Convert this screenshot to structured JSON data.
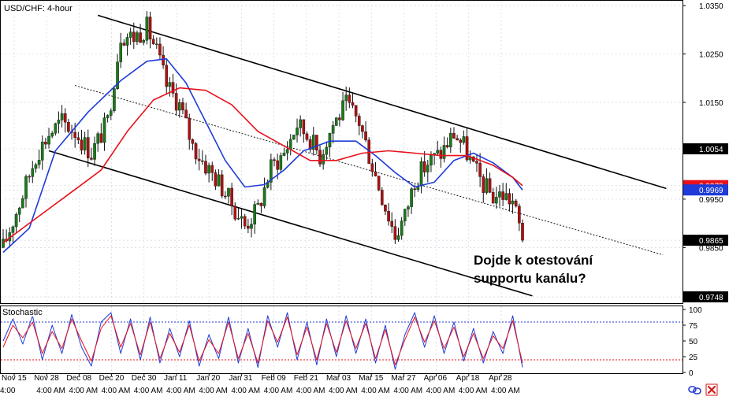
{
  "symbol_label": "USD/CHF: 4-hour",
  "annotation": "Dojde k otestování\nsupportu kanálu?",
  "chart_data": [
    {
      "type": "candlestick",
      "title": "USD/CHF: 4-hour",
      "ylim": [
        0.9735,
        1.036
      ],
      "y_ticks": [
        1.035,
        1.025,
        1.015,
        1.0054,
        0.9978,
        0.9969,
        0.995,
        0.9865,
        0.985,
        0.9748
      ],
      "y_tick_labels": [
        "1.0350",
        "1.0250",
        "1.0150",
        "1.0054",
        "0.9978",
        "0.9969",
        "0.9950",
        "0.9865",
        "0.9850",
        "0.9748"
      ],
      "highlighted_prices": [
        {
          "value": 1.0054,
          "label": "1.0054",
          "color": "#000000"
        },
        {
          "value": 0.9978,
          "label": "0.9978",
          "color": "#e8111b"
        },
        {
          "value": 0.9969,
          "label": "0.9969",
          "color": "#1f3bd8"
        },
        {
          "value": 0.9865,
          "label": "0.9865",
          "color": "#000000"
        },
        {
          "value": 0.9748,
          "label": "0.9748",
          "color": "#000000"
        }
      ],
      "x_date_labels": [
        "Nov 15",
        "Nov 28",
        "Dec 08",
        "Dec 20",
        "Dec 30",
        "Jan 11",
        "Jan 20",
        "Jan 31",
        "Feb 09",
        "Feb 21",
        "Mar 03",
        "Mar 15",
        "Mar 27",
        "Apr 06",
        "Apr 18",
        "Apr 28"
      ],
      "x_time_labels": [
        "4:00",
        "4:00 AM",
        "4:00 AM",
        "4:00 AM",
        "4:00 AM",
        "4:00 AM",
        "4:00 AM",
        "4:00 AM",
        "4:00 AM",
        "4:00 AM",
        "4:00 AM",
        "4:00 AM",
        "4:00 AM",
        "4:00 AM",
        "4:00 AM",
        "4:00 AM"
      ],
      "price_path": [
        {
          "x": 0,
          "y": 0.985
        },
        {
          "x": 6,
          "y": 0.996
        },
        {
          "x": 10,
          "y": 1.004
        },
        {
          "x": 14,
          "y": 1.0085
        },
        {
          "x": 18,
          "y": 1.011
        },
        {
          "x": 22,
          "y": 1.009
        },
        {
          "x": 27,
          "y": 1.0045
        },
        {
          "x": 32,
          "y": 1.011
        },
        {
          "x": 36,
          "y": 1.029
        },
        {
          "x": 40,
          "y": 1.0285
        },
        {
          "x": 44,
          "y": 1.0305
        },
        {
          "x": 47,
          "y": 1.0255
        },
        {
          "x": 50,
          "y": 1.0185
        },
        {
          "x": 54,
          "y": 1.0145
        },
        {
          "x": 58,
          "y": 1.006
        },
        {
          "x": 62,
          "y": 1.002
        },
        {
          "x": 66,
          "y": 0.9985
        },
        {
          "x": 70,
          "y": 0.994
        },
        {
          "x": 74,
          "y": 0.9895
        },
        {
          "x": 78,
          "y": 0.993
        },
        {
          "x": 82,
          "y": 1.0015
        },
        {
          "x": 86,
          "y": 1.0045
        },
        {
          "x": 90,
          "y": 1.0105
        },
        {
          "x": 94,
          "y": 1.0075
        },
        {
          "x": 97,
          "y": 1.004
        },
        {
          "x": 101,
          "y": 1.0105
        },
        {
          "x": 105,
          "y": 1.0145
        },
        {
          "x": 109,
          "y": 1.011
        },
        {
          "x": 113,
          "y": 1.002
        },
        {
          "x": 117,
          "y": 0.9935
        },
        {
          "x": 120,
          "y": 0.9875
        },
        {
          "x": 123,
          "y": 0.9915
        },
        {
          "x": 126,
          "y": 0.999
        },
        {
          "x": 130,
          "y": 1.0025
        },
        {
          "x": 134,
          "y": 1.0045
        },
        {
          "x": 138,
          "y": 1.0085
        },
        {
          "x": 141,
          "y": 1.006
        },
        {
          "x": 144,
          "y": 1.0015
        },
        {
          "x": 147,
          "y": 0.998
        },
        {
          "x": 150,
          "y": 0.9955
        },
        {
          "x": 153,
          "y": 0.996
        },
        {
          "x": 156,
          "y": 0.9945
        },
        {
          "x": 159,
          "y": 0.987
        }
      ],
      "series": [
        {
          "name": "",
          "color": "#1f3bd8",
          "values": [
            {
              "x": 0,
              "y": 0.984
            },
            {
              "x": 8,
              "y": 0.989
            },
            {
              "x": 16,
              "y": 1.005
            },
            {
              "x": 26,
              "y": 1.013
            },
            {
              "x": 36,
              "y": 1.0195
            },
            {
              "x": 44,
              "y": 1.0235
            },
            {
              "x": 50,
              "y": 1.024
            },
            {
              "x": 56,
              "y": 1.019
            },
            {
              "x": 62,
              "y": 1.011
            },
            {
              "x": 68,
              "y": 1.003
            },
            {
              "x": 74,
              "y": 0.9975
            },
            {
              "x": 80,
              "y": 0.998
            },
            {
              "x": 86,
              "y": 1.001
            },
            {
              "x": 92,
              "y": 1.005
            },
            {
              "x": 100,
              "y": 1.007
            },
            {
              "x": 108,
              "y": 1.007
            },
            {
              "x": 114,
              "y": 1.004
            },
            {
              "x": 120,
              "y": 1.0005
            },
            {
              "x": 126,
              "y": 0.9975
            },
            {
              "x": 132,
              "y": 0.9985
            },
            {
              "x": 138,
              "y": 1.003
            },
            {
              "x": 144,
              "y": 1.0045
            },
            {
              "x": 150,
              "y": 1.0025
            },
            {
              "x": 156,
              "y": 0.9995
            },
            {
              "x": 159,
              "y": 0.9969
            }
          ]
        },
        {
          "name": "",
          "color": "#e8111b",
          "values": [
            {
              "x": 0,
              "y": 0.986
            },
            {
              "x": 10,
              "y": 0.991
            },
            {
              "x": 20,
              "y": 0.996
            },
            {
              "x": 30,
              "y": 1.001
            },
            {
              "x": 38,
              "y": 1.009
            },
            {
              "x": 46,
              "y": 1.0155
            },
            {
              "x": 54,
              "y": 1.018
            },
            {
              "x": 62,
              "y": 1.0175
            },
            {
              "x": 70,
              "y": 1.0145
            },
            {
              "x": 78,
              "y": 1.009
            },
            {
              "x": 86,
              "y": 1.006
            },
            {
              "x": 94,
              "y": 1.003
            },
            {
              "x": 102,
              "y": 1.003
            },
            {
              "x": 110,
              "y": 1.0045
            },
            {
              "x": 118,
              "y": 1.005
            },
            {
              "x": 126,
              "y": 1.0045
            },
            {
              "x": 134,
              "y": 1.004
            },
            {
              "x": 142,
              "y": 1.004
            },
            {
              "x": 150,
              "y": 1.002
            },
            {
              "x": 156,
              "y": 0.9995
            },
            {
              "x": 159,
              "y": 0.9978
            }
          ]
        }
      ],
      "trendlines": [
        {
          "role": "channel_upper",
          "style": "solid",
          "from": {
            "x": 29,
            "y": 1.033
          },
          "to": {
            "x": 203,
            "y": 0.9972
          }
        },
        {
          "role": "channel_lower",
          "style": "solid",
          "from": {
            "x": 14,
            "y": 1.005
          },
          "to": {
            "x": 162,
            "y": 0.975
          }
        },
        {
          "role": "channel_middle",
          "style": "dotted",
          "from": {
            "x": 22,
            "y": 1.0185
          },
          "to": {
            "x": 202,
            "y": 0.9835
          }
        }
      ]
    },
    {
      "type": "line",
      "title": "Stochastic",
      "ylim": [
        0,
        100
      ],
      "y_ticks": [
        100,
        75,
        50,
        25,
        0
      ],
      "y_tick_labels": [
        "100",
        "75",
        "50",
        "25",
        "0"
      ],
      "levels": [
        80,
        20
      ],
      "series": [
        {
          "name": "",
          "color": "#1f3bd8",
          "values": [
            {
              "x": 0,
              "y": 50
            },
            {
              "x": 3,
              "y": 85
            },
            {
              "x": 6,
              "y": 45
            },
            {
              "x": 9,
              "y": 90
            },
            {
              "x": 12,
              "y": 20
            },
            {
              "x": 15,
              "y": 75
            },
            {
              "x": 18,
              "y": 30
            },
            {
              "x": 21,
              "y": 92
            },
            {
              "x": 24,
              "y": 40
            },
            {
              "x": 27,
              "y": 10
            },
            {
              "x": 30,
              "y": 80
            },
            {
              "x": 33,
              "y": 95
            },
            {
              "x": 36,
              "y": 30
            },
            {
              "x": 39,
              "y": 85
            },
            {
              "x": 42,
              "y": 20
            },
            {
              "x": 45,
              "y": 88
            },
            {
              "x": 48,
              "y": 15
            },
            {
              "x": 51,
              "y": 70
            },
            {
              "x": 54,
              "y": 25
            },
            {
              "x": 57,
              "y": 82
            },
            {
              "x": 60,
              "y": 10
            },
            {
              "x": 63,
              "y": 60
            },
            {
              "x": 66,
              "y": 22
            },
            {
              "x": 69,
              "y": 88
            },
            {
              "x": 72,
              "y": 15
            },
            {
              "x": 75,
              "y": 70
            },
            {
              "x": 78,
              "y": 8
            },
            {
              "x": 81,
              "y": 90
            },
            {
              "x": 84,
              "y": 40
            },
            {
              "x": 87,
              "y": 95
            },
            {
              "x": 90,
              "y": 20
            },
            {
              "x": 93,
              "y": 80
            },
            {
              "x": 96,
              "y": 12
            },
            {
              "x": 99,
              "y": 85
            },
            {
              "x": 102,
              "y": 25
            },
            {
              "x": 105,
              "y": 90
            },
            {
              "x": 108,
              "y": 30
            },
            {
              "x": 111,
              "y": 85
            },
            {
              "x": 114,
              "y": 15
            },
            {
              "x": 117,
              "y": 75
            },
            {
              "x": 120,
              "y": 5
            },
            {
              "x": 123,
              "y": 60
            },
            {
              "x": 126,
              "y": 95
            },
            {
              "x": 129,
              "y": 40
            },
            {
              "x": 132,
              "y": 90
            },
            {
              "x": 135,
              "y": 30
            },
            {
              "x": 138,
              "y": 80
            },
            {
              "x": 141,
              "y": 18
            },
            {
              "x": 144,
              "y": 70
            },
            {
              "x": 147,
              "y": 15
            },
            {
              "x": 150,
              "y": 65
            },
            {
              "x": 153,
              "y": 30
            },
            {
              "x": 156,
              "y": 90
            },
            {
              "x": 159,
              "y": 8
            }
          ]
        },
        {
          "name": "",
          "color": "#e8111b",
          "values": [
            {
              "x": 0,
              "y": 40
            },
            {
              "x": 3,
              "y": 75
            },
            {
              "x": 6,
              "y": 55
            },
            {
              "x": 9,
              "y": 80
            },
            {
              "x": 12,
              "y": 30
            },
            {
              "x": 15,
              "y": 65
            },
            {
              "x": 18,
              "y": 38
            },
            {
              "x": 21,
              "y": 85
            },
            {
              "x": 24,
              "y": 50
            },
            {
              "x": 27,
              "y": 18
            },
            {
              "x": 30,
              "y": 70
            },
            {
              "x": 33,
              "y": 90
            },
            {
              "x": 36,
              "y": 40
            },
            {
              "x": 39,
              "y": 78
            },
            {
              "x": 42,
              "y": 28
            },
            {
              "x": 45,
              "y": 80
            },
            {
              "x": 48,
              "y": 22
            },
            {
              "x": 51,
              "y": 62
            },
            {
              "x": 54,
              "y": 32
            },
            {
              "x": 57,
              "y": 75
            },
            {
              "x": 60,
              "y": 18
            },
            {
              "x": 63,
              "y": 52
            },
            {
              "x": 66,
              "y": 30
            },
            {
              "x": 69,
              "y": 80
            },
            {
              "x": 72,
              "y": 22
            },
            {
              "x": 75,
              "y": 62
            },
            {
              "x": 78,
              "y": 15
            },
            {
              "x": 81,
              "y": 82
            },
            {
              "x": 84,
              "y": 48
            },
            {
              "x": 87,
              "y": 88
            },
            {
              "x": 90,
              "y": 28
            },
            {
              "x": 93,
              "y": 72
            },
            {
              "x": 96,
              "y": 20
            },
            {
              "x": 99,
              "y": 78
            },
            {
              "x": 102,
              "y": 32
            },
            {
              "x": 105,
              "y": 82
            },
            {
              "x": 108,
              "y": 38
            },
            {
              "x": 111,
              "y": 78
            },
            {
              "x": 114,
              "y": 22
            },
            {
              "x": 117,
              "y": 68
            },
            {
              "x": 120,
              "y": 12
            },
            {
              "x": 123,
              "y": 52
            },
            {
              "x": 126,
              "y": 88
            },
            {
              "x": 129,
              "y": 48
            },
            {
              "x": 132,
              "y": 82
            },
            {
              "x": 135,
              "y": 38
            },
            {
              "x": 138,
              "y": 72
            },
            {
              "x": 141,
              "y": 25
            },
            {
              "x": 144,
              "y": 62
            },
            {
              "x": 147,
              "y": 22
            },
            {
              "x": 150,
              "y": 58
            },
            {
              "x": 153,
              "y": 38
            },
            {
              "x": 156,
              "y": 82
            },
            {
              "x": 159,
              "y": 15
            }
          ]
        }
      ]
    }
  ],
  "colors": {
    "bull_candle": "#1a7a1a",
    "bear_candle": "#b01010",
    "wick": "#111111",
    "grid": "#cfd6e0",
    "frame": "#000000",
    "level_line": "#1f3bd8",
    "low_level_line": "#e8111b"
  },
  "icons": [
    "chart-link-icon",
    "close-icon"
  ]
}
